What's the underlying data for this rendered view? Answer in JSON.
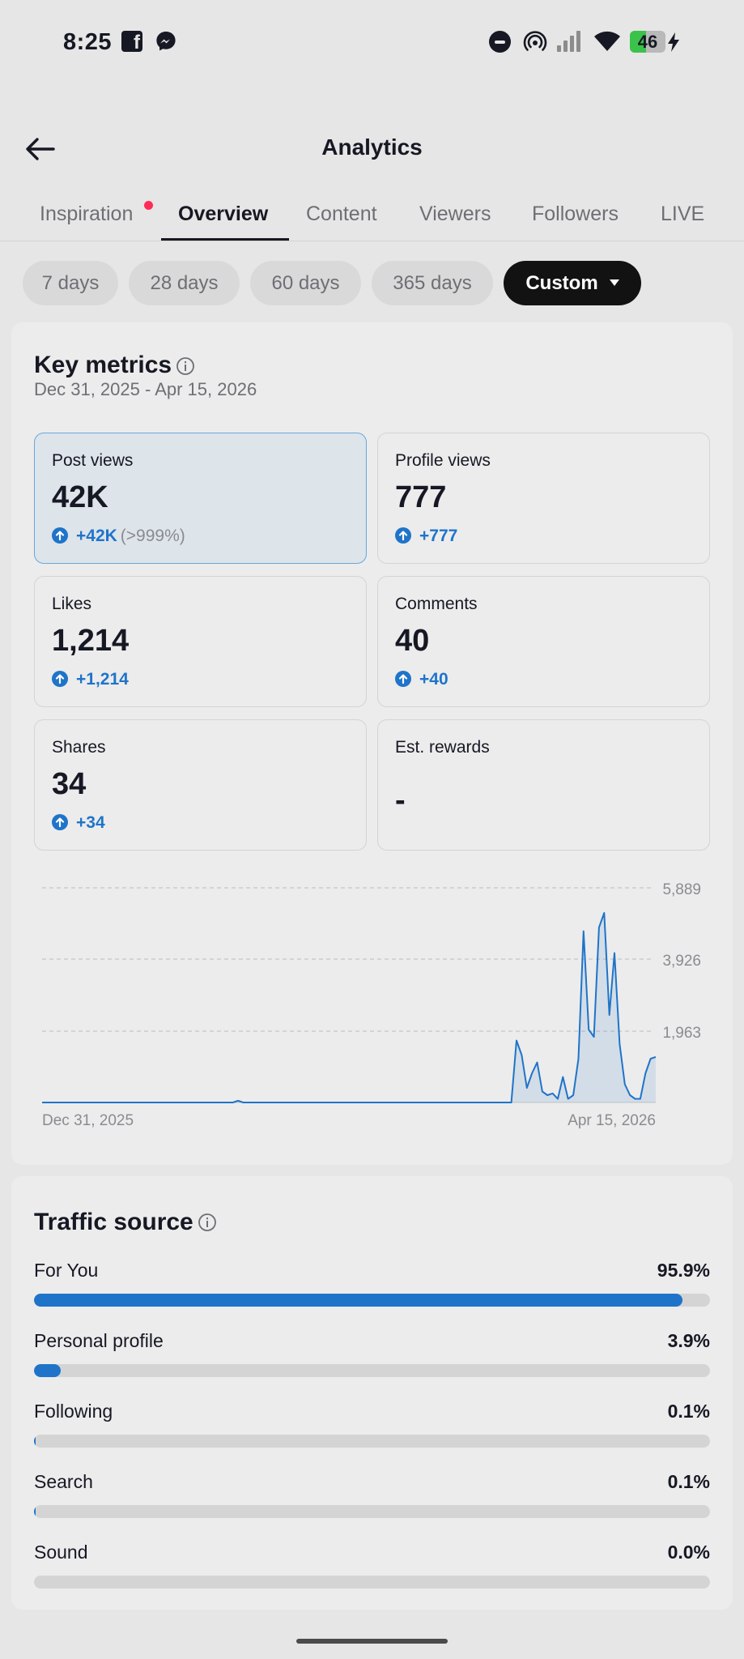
{
  "status_bar": {
    "time": "8:25",
    "battery": "46",
    "battery_fraction": 0.46,
    "icons": [
      "facebook-icon",
      "messenger-icon",
      "do-not-disturb-icon",
      "hotspot-icon",
      "signal-icon",
      "wifi-icon",
      "battery-icon",
      "charging-icon"
    ]
  },
  "header": {
    "title": "Analytics",
    "back_icon": "arrow-left-icon"
  },
  "tabs": [
    {
      "label": "Inspiration",
      "badge": true
    },
    {
      "label": "Overview",
      "active": true
    },
    {
      "label": "Content"
    },
    {
      "label": "Viewers"
    },
    {
      "label": "Followers"
    },
    {
      "label": "LIVE"
    }
  ],
  "date_filters": [
    {
      "label": "7 days"
    },
    {
      "label": "28 days"
    },
    {
      "label": "60 days"
    },
    {
      "label": "365 days"
    },
    {
      "label": "Custom",
      "active": true,
      "icon": "caret-down-icon"
    }
  ],
  "key_metrics": {
    "title": "Key metrics",
    "date_range": "Dec 31, 2025 - Apr 15, 2026",
    "cards": [
      {
        "label": "Post views",
        "value": "42K",
        "change": "+42K",
        "percent": "(>999%)",
        "selected": true
      },
      {
        "label": "Profile views",
        "value": "777",
        "change": "+777",
        "percent": ""
      },
      {
        "label": "Likes",
        "value": "1,214",
        "change": "+1,214",
        "percent": ""
      },
      {
        "label": "Comments",
        "value": "40",
        "change": "+40",
        "percent": ""
      },
      {
        "label": "Shares",
        "value": "34",
        "change": "+34",
        "percent": ""
      },
      {
        "label": "Est. rewards",
        "value": "-",
        "change": "",
        "percent": ""
      }
    ]
  },
  "chart_data": {
    "type": "area",
    "series_label": "Post views",
    "x_start_label": "Dec 31, 2025",
    "x_end_label": "Apr 15, 2026",
    "y_ticks": [
      "5,889",
      "3,926",
      "1,963"
    ],
    "y_tick_values": [
      5889,
      3926,
      1963
    ],
    "ylim": [
      0,
      5889
    ],
    "grid": true,
    "values": [
      0,
      0,
      0,
      0,
      0,
      0,
      0,
      0,
      0,
      0,
      0,
      0,
      0,
      0,
      0,
      0,
      0,
      0,
      0,
      0,
      0,
      0,
      0,
      0,
      0,
      0,
      0,
      0,
      0,
      0,
      0,
      0,
      0,
      0,
      0,
      0,
      0,
      0,
      50,
      0,
      0,
      0,
      0,
      0,
      0,
      0,
      0,
      0,
      0,
      0,
      0,
      0,
      0,
      0,
      0,
      0,
      0,
      0,
      0,
      0,
      0,
      0,
      0,
      0,
      0,
      0,
      0,
      0,
      0,
      0,
      0,
      0,
      0,
      0,
      0,
      0,
      0,
      0,
      0,
      0,
      0,
      0,
      0,
      0,
      0,
      0,
      0,
      0,
      0,
      0,
      0,
      0,
      1700,
      1300,
      400,
      800,
      1100,
      300,
      200,
      250,
      100,
      700,
      100,
      200,
      1200,
      4700,
      2000,
      1800,
      4800,
      5200,
      2400,
      4100,
      1600,
      500,
      200,
      100,
      100,
      800,
      1200,
      1250
    ]
  },
  "traffic_source": {
    "title": "Traffic source",
    "items": [
      {
        "label": "For You",
        "value": "95.9%",
        "fraction": 0.959
      },
      {
        "label": "Personal profile",
        "value": "3.9%",
        "fraction": 0.039
      },
      {
        "label": "Following",
        "value": "0.1%",
        "fraction": 0.001
      },
      {
        "label": "Search",
        "value": "0.1%",
        "fraction": 0.001
      },
      {
        "label": "Sound",
        "value": "0.0%",
        "fraction": 0.0
      }
    ]
  },
  "colors": {
    "accent": "#1f74c9",
    "badge": "#fe2c55",
    "background": "#e6e6e6",
    "card": "#ececec",
    "battery": "#3bc24a"
  }
}
